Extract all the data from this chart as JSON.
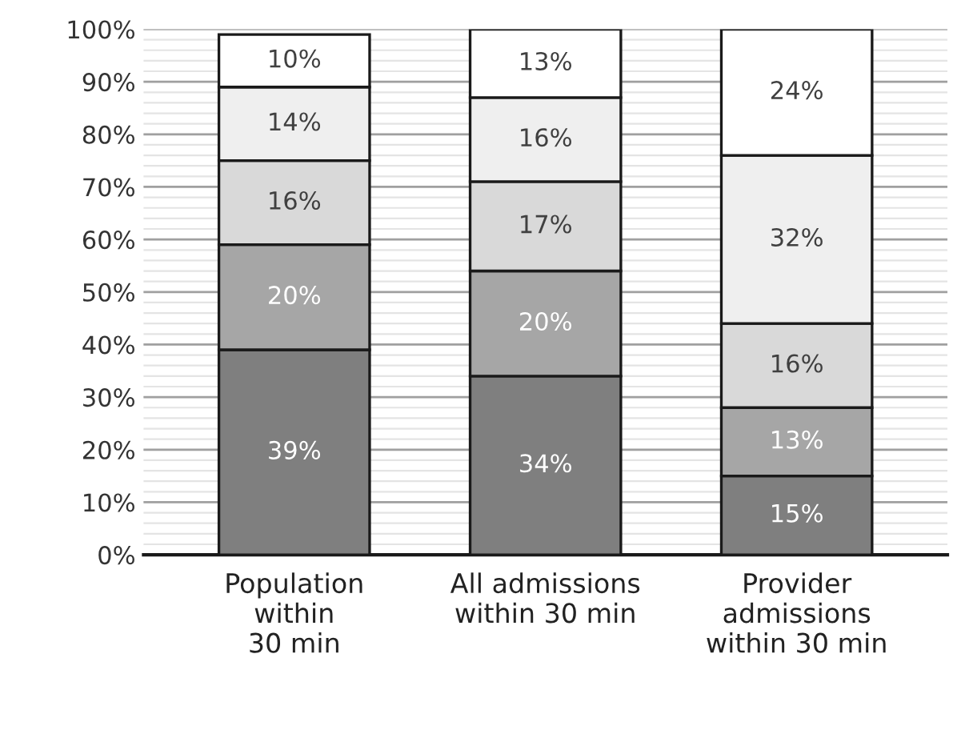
{
  "chart_data": {
    "type": "bar",
    "stacked": true,
    "categories": [
      "Population\nwithin\n30 min",
      "All admissions\nwithin 30 min",
      "Provider\nadmissions\nwithin 30 min"
    ],
    "series": [
      {
        "color": "#7f7f7f",
        "values": [
          39,
          34,
          15
        ],
        "value_labels": [
          "39%",
          "34%",
          "15%"
        ]
      },
      {
        "color": "#a6a6a6",
        "values": [
          20,
          20,
          13
        ],
        "value_labels": [
          "20%",
          "20%",
          "13%"
        ]
      },
      {
        "color": "#d9d9d9",
        "values": [
          16,
          17,
          16
        ],
        "value_labels": [
          "16%",
          "17%",
          "16%"
        ]
      },
      {
        "color": "#efefef",
        "values": [
          14,
          16,
          32
        ],
        "value_labels": [
          "14%",
          "16%",
          "32%"
        ]
      },
      {
        "color": "#ffffff",
        "values": [
          10,
          13,
          24
        ],
        "value_labels": [
          "10%",
          "13%",
          "24%"
        ]
      }
    ],
    "ylim": [
      0,
      100
    ],
    "yticks": [
      {
        "value": 0,
        "label": "0%"
      },
      {
        "value": 10,
        "label": "10%"
      },
      {
        "value": 20,
        "label": "20%"
      },
      {
        "value": 30,
        "label": "30%"
      },
      {
        "value": 40,
        "label": "40%"
      },
      {
        "value": 50,
        "label": "50%"
      },
      {
        "value": 60,
        "label": "60%"
      },
      {
        "value": 70,
        "label": "70%"
      },
      {
        "value": 80,
        "label": "80%"
      },
      {
        "value": 90,
        "label": "90%"
      },
      {
        "value": 100,
        "label": "100%"
      }
    ],
    "grid": "y",
    "legend": false
  }
}
